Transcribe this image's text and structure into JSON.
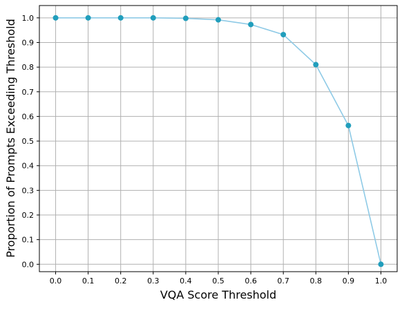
{
  "chart_data": {
    "type": "line",
    "title": "",
    "xlabel": "VQA Score Threshold",
    "ylabel": "Proportion of Prompts Exceeding Threshold",
    "xlim": [
      -0.05,
      1.05
    ],
    "ylim": [
      -0.03,
      1.05
    ],
    "xticks": [
      0.0,
      0.1,
      0.2,
      0.3,
      0.4,
      0.5,
      0.6,
      0.7,
      0.8,
      0.9,
      1.0
    ],
    "xtick_labels": [
      "0.0",
      "0.1",
      "0.2",
      "0.3",
      "0.4",
      "0.5",
      "0.6",
      "0.7",
      "0.8",
      "0.9",
      "1.0"
    ],
    "yticks": [
      0.0,
      0.1,
      0.2,
      0.3,
      0.4,
      0.5,
      0.6,
      0.7,
      0.8,
      0.9,
      1.0
    ],
    "ytick_labels": [
      "0.0",
      "0.1",
      "0.2",
      "0.3",
      "0.4",
      "0.5",
      "0.6",
      "0.7",
      "0.8",
      "0.9",
      "1.0"
    ],
    "grid": true,
    "series": [
      {
        "x": [
          0.0,
          0.1,
          0.2,
          0.3,
          0.4,
          0.5,
          0.6,
          0.7,
          0.8,
          0.9,
          1.0
        ],
        "y": [
          1.0,
          1.0,
          1.0,
          1.0,
          0.998,
          0.992,
          0.973,
          0.932,
          0.81,
          0.563,
          0.0
        ],
        "line_color": "#8ecae6",
        "marker_color": "#219ebc"
      }
    ]
  },
  "colors": {
    "grid": "#b0b0b0",
    "axes": "#000000",
    "background": "#ffffff"
  }
}
